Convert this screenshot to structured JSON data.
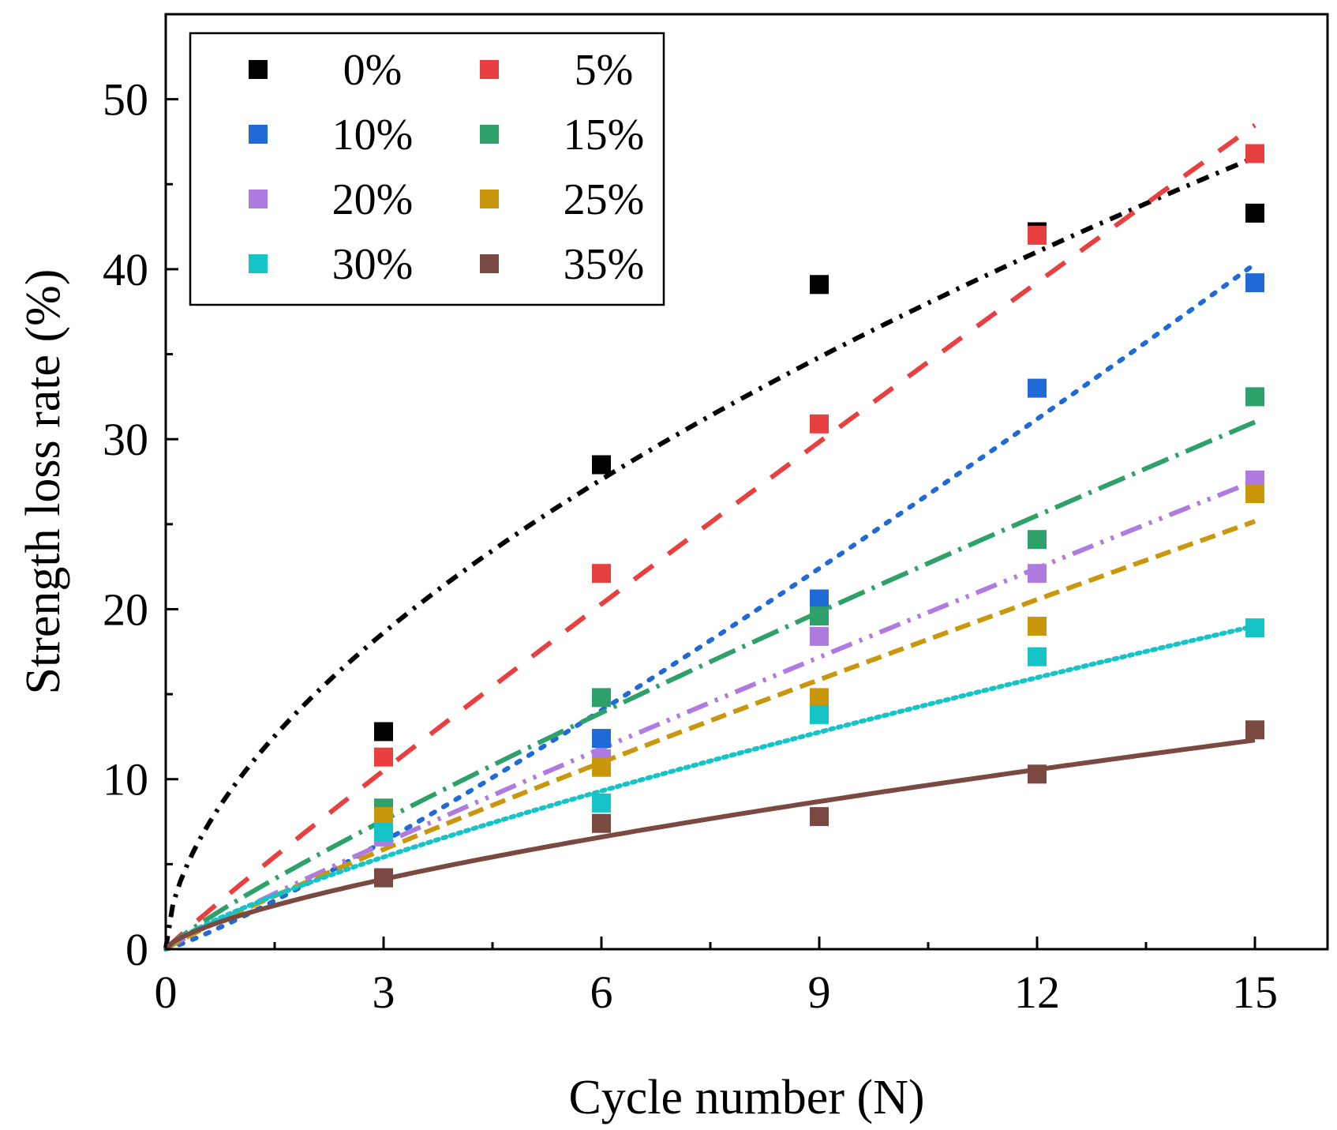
{
  "chart_data": {
    "type": "scatter",
    "title": "",
    "xlabel": "Cycle number (N)",
    "ylabel": "Strength loss rate (%)",
    "xlim": [
      0,
      16
    ],
    "ylim": [
      0,
      55
    ],
    "xticks": [
      0,
      3,
      6,
      9,
      12,
      15
    ],
    "xtick_labels": [
      "0",
      "3",
      "6",
      "9",
      "12",
      "15"
    ],
    "yticks": [
      0,
      10,
      20,
      30,
      40,
      50
    ],
    "ytick_labels": [
      "0",
      "10",
      "20",
      "30",
      "40",
      "50"
    ],
    "grid": false,
    "legend_position": "top-left",
    "x": [
      3,
      6,
      9,
      12,
      15
    ],
    "series": [
      {
        "name": "0%",
        "color": "#000000",
        "values": [
          12.8,
          28.5,
          39.1,
          42.2,
          43.3
        ],
        "fit": {
          "a": 9.95,
          "b": 0.57
        },
        "dash": "16 10 4 10"
      },
      {
        "name": "5%",
        "color": "#e84040",
        "values": [
          11.3,
          22.1,
          30.9,
          42.0,
          46.8
        ],
        "fit": {
          "a": 3.7,
          "b": 0.95
        },
        "dash": "30 24"
      },
      {
        "name": "10%",
        "color": "#1f6ad6",
        "values": [
          4.2,
          12.4,
          20.6,
          33.0,
          39.2
        ],
        "fit": {
          "a": 1.79,
          "b": 1.15
        },
        "dash": "5 13"
      },
      {
        "name": "15%",
        "color": "#2ea06a",
        "values": [
          8.3,
          14.8,
          19.6,
          24.1,
          32.5
        ],
        "fit": {
          "a": 2.9,
          "b": 0.875
        },
        "dash": "36 10 4 10"
      },
      {
        "name": "20%",
        "color": "#b07be0",
        "values": [
          6.6,
          11.2,
          18.4,
          22.1,
          27.6
        ],
        "fit": {
          "a": 2.25,
          "b": 0.925
        },
        "dash": "28 10 4 10 4 10"
      },
      {
        "name": "25%",
        "color": "#c9960c",
        "values": [
          7.8,
          10.7,
          14.8,
          19.0,
          26.8
        ],
        "fit": {
          "a": 2.17,
          "b": 0.905
        },
        "dash": "20 10"
      },
      {
        "name": "30%",
        "color": "#16c4c8",
        "values": [
          6.9,
          8.6,
          13.8,
          17.2,
          18.9
        ],
        "fit": {
          "a": 2.3,
          "b": 0.78
        },
        "dash": "4 6"
      },
      {
        "name": "35%",
        "color": "#7a4a42",
        "values": [
          4.2,
          7.4,
          7.8,
          10.3,
          12.9
        ],
        "fit": {
          "a": 1.95,
          "b": 0.68
        },
        "dash": ""
      }
    ]
  }
}
